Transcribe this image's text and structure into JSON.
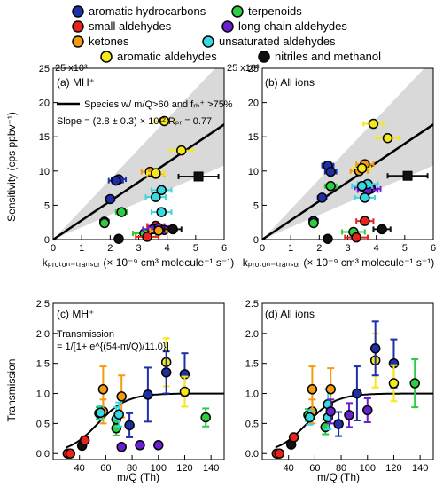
{
  "colors": {
    "aromatic_hydrocarbons": "#1f2fa8",
    "terpenoids": "#2ecc40",
    "small_aldehydes": "#e8231c",
    "long_chain_aldehydes": "#6a1fd1",
    "ketones": "#f39c12",
    "unsaturated_aldehydes": "#38d8e0",
    "aromatic_aldehydes": "#f5e81a",
    "nitriles_methanol": "#111111",
    "shade": "#d9d9d9"
  },
  "legend": [
    {
      "key": "aromatic_hydrocarbons",
      "label": "aromatic hydrocarbons"
    },
    {
      "key": "terpenoids",
      "label": "terpenoids"
    },
    {
      "key": "small_aldehydes",
      "label": "small aldehydes"
    },
    {
      "key": "long_chain_aldehydes",
      "label": "long-chain aldehydes"
    },
    {
      "key": "ketones",
      "label": "ketones"
    },
    {
      "key": "unsaturated_aldehydes",
      "label": "unsaturated aldehydes"
    },
    {
      "key": "aromatic_aldehydes",
      "label": "aromatic aldehydes"
    },
    {
      "key": "nitriles_methanol",
      "label": "nitriles and methanol"
    }
  ],
  "text": {
    "y_scale_a": "25 x10³",
    "y_scale_b": "25 x10³",
    "panel_a": "(a) MH⁺",
    "panel_b": "(b) All ions",
    "panel_c": "(c) MH⁺",
    "panel_d": "(d) All ions",
    "fit_legend": "Species w/ m/Q>60 and fᵣₕ⁺ >75%",
    "slope": "Slope = (2.8 ± 0.3) × 10¹² Rₚᵣ = 0.77",
    "ylabel_top": "Sensitivity (cps ppbv⁻¹)",
    "xlabel_top": "kₚᵣₒₜₒₙ₋ₜᵣₐₙₛₒᵣ (× 10⁻⁹ cm³ molecule⁻¹ s⁻¹)",
    "ylabel_bottom": "Transmission",
    "xlabel_bottom": "m/Q (Th)",
    "transmission_eq_1": "Transmission",
    "transmission_eq_2": "= 1/[1+ e^{(54-m/Q)/11.0}]"
  },
  "chart_data": [
    {
      "type": "scatter",
      "panel": "a",
      "title": "(a) MH+",
      "xlabel": "k_proton-transfer (× 10^-9 cm^3 molecule^-1 s^-1)",
      "ylabel": "Sensitivity (cps ppbv^-1)",
      "xlim": [
        0,
        6
      ],
      "ylim": [
        0,
        25
      ],
      "y_multiplier": "x10^3",
      "xticks": [
        0,
        1,
        2,
        3,
        4,
        5,
        6
      ],
      "yticks": [
        0,
        5,
        10,
        15,
        20,
        25
      ],
      "fit_slope": 2.8,
      "shade_upper_slope": 4.4,
      "shade_lower_slope": 1.8,
      "points": [
        {
          "c": "aromatic_hydrocarbons",
          "x": 2.3,
          "y": 8.8,
          "xerr": 0.25
        },
        {
          "c": "aromatic_hydrocarbons",
          "x": 2.2,
          "y": 8.6,
          "xerr": 0.25
        },
        {
          "c": "aromatic_hydrocarbons",
          "x": 2.0,
          "y": 5.9,
          "xerr": 0.15
        },
        {
          "c": "aromatic_hydrocarbons",
          "x": 1.8,
          "y": 2.6,
          "xerr": 0.15
        },
        {
          "c": "terpenoids",
          "x": 1.8,
          "y": 2.4,
          "xerr": 0.1
        },
        {
          "c": "terpenoids",
          "x": 2.4,
          "y": 4.0,
          "xerr": 0.2
        },
        {
          "c": "terpenoids",
          "x": 3.2,
          "y": 0.9,
          "xerr": 0.4
        },
        {
          "c": "small_aldehydes",
          "x": 3.3,
          "y": 0.4,
          "xerr": 0.4
        },
        {
          "c": "small_aldehydes",
          "x": 3.6,
          "y": 2.0,
          "xerr": 0.3
        },
        {
          "c": "long_chain_aldehydes",
          "x": 3.5,
          "y": 1.5,
          "xerr": 0.35
        },
        {
          "c": "long_chain_aldehydes",
          "x": 3.7,
          "y": 1.7,
          "xerr": 0.35
        },
        {
          "c": "long_chain_aldehydes",
          "x": 3.9,
          "y": 1.4,
          "xerr": 0.35
        },
        {
          "c": "ketones",
          "x": 3.4,
          "y": 9.9,
          "xerr": 0.3
        },
        {
          "c": "ketones",
          "x": 3.6,
          "y": 9.6,
          "xerr": 0.3
        },
        {
          "c": "ketones",
          "x": 3.7,
          "y": 1.3,
          "xerr": 0.3
        },
        {
          "c": "unsaturated_aldehydes",
          "x": 3.8,
          "y": 7.2,
          "xerr": 0.35
        },
        {
          "c": "unsaturated_aldehydes",
          "x": 3.6,
          "y": 6.2,
          "xerr": 0.35
        },
        {
          "c": "unsaturated_aldehydes",
          "x": 3.8,
          "y": 4.0,
          "xerr": 0.35
        },
        {
          "c": "aromatic_aldehydes",
          "x": 3.9,
          "y": 17.3,
          "xerr": 0.35
        },
        {
          "c": "aromatic_aldehydes",
          "x": 4.5,
          "y": 13.0,
          "xerr": 0.4
        },
        {
          "c": "aromatic_aldehydes",
          "x": 3.6,
          "y": 9.7,
          "xerr": 0.3
        },
        {
          "c": "nitriles_methanol",
          "x": 2.3,
          "y": 0.1,
          "xerr": 0
        },
        {
          "c": "nitriles_methanol",
          "x": 4.2,
          "y": 1.5,
          "xerr": 0.3
        },
        {
          "c": "nitriles_methanol",
          "x": 5.1,
          "y": 9.2,
          "xerr": 0.7,
          "marker": "square"
        }
      ]
    },
    {
      "type": "scatter",
      "panel": "b",
      "title": "(b) All ions",
      "xlabel": "k_proton-transfer (× 10^-9 cm^3 molecule^-1 s^-1)",
      "xlim": [
        0,
        6
      ],
      "ylim": [
        0,
        25
      ],
      "y_multiplier": "x10^3",
      "xticks": [
        0,
        1,
        2,
        3,
        4,
        5,
        6
      ],
      "yticks": [
        0,
        5,
        10,
        15,
        20,
        25
      ],
      "fit_slope": 2.8,
      "shade_upper_slope": 4.4,
      "shade_lower_slope": 1.8,
      "points": [
        {
          "c": "aromatic_hydrocarbons",
          "x": 2.3,
          "y": 10.8,
          "xerr": 0.2
        },
        {
          "c": "aromatic_hydrocarbons",
          "x": 2.4,
          "y": 9.9,
          "xerr": 0.2
        },
        {
          "c": "aromatic_hydrocarbons",
          "x": 2.1,
          "y": 6.1,
          "xerr": 0.15
        },
        {
          "c": "aromatic_hydrocarbons",
          "x": 1.8,
          "y": 2.7,
          "xerr": 0.15
        },
        {
          "c": "terpenoids",
          "x": 1.8,
          "y": 2.4,
          "xerr": 0.1
        },
        {
          "c": "terpenoids",
          "x": 2.4,
          "y": 7.8,
          "xerr": 0.2
        },
        {
          "c": "terpenoids",
          "x": 3.2,
          "y": 1.1,
          "xerr": 0.4
        },
        {
          "c": "small_aldehydes",
          "x": 3.3,
          "y": 0.3,
          "xerr": 0.4
        },
        {
          "c": "small_aldehydes",
          "x": 3.6,
          "y": 2.7,
          "xerr": 0.3
        },
        {
          "c": "long_chain_aldehydes",
          "x": 3.6,
          "y": 7.6,
          "xerr": 0.35
        },
        {
          "c": "long_chain_aldehydes",
          "x": 3.8,
          "y": 7.4,
          "xerr": 0.35
        },
        {
          "c": "long_chain_aldehydes",
          "x": 3.7,
          "y": 7.2,
          "xerr": 0.35
        },
        {
          "c": "ketones",
          "x": 3.4,
          "y": 10.0,
          "xerr": 0.3
        },
        {
          "c": "ketones",
          "x": 3.6,
          "y": 11.0,
          "xerr": 0.3
        },
        {
          "c": "unsaturated_aldehydes",
          "x": 3.7,
          "y": 8.1,
          "xerr": 0.35
        },
        {
          "c": "unsaturated_aldehydes",
          "x": 3.6,
          "y": 6.1,
          "xerr": 0.35
        },
        {
          "c": "unsaturated_aldehydes",
          "x": 3.5,
          "y": 7.8,
          "xerr": 0.35
        },
        {
          "c": "aromatic_aldehydes",
          "x": 3.9,
          "y": 16.9,
          "xerr": 0.35
        },
        {
          "c": "aromatic_aldehydes",
          "x": 4.4,
          "y": 14.8,
          "xerr": 0.4
        },
        {
          "c": "aromatic_aldehydes",
          "x": 3.5,
          "y": 10.4,
          "xerr": 0.3
        },
        {
          "c": "nitriles_methanol",
          "x": 2.3,
          "y": 0.1,
          "xerr": 0
        },
        {
          "c": "nitriles_methanol",
          "x": 4.2,
          "y": 1.5,
          "xerr": 0.3
        },
        {
          "c": "nitriles_methanol",
          "x": 5.1,
          "y": 9.3,
          "xerr": 0.7,
          "marker": "square"
        }
      ]
    },
    {
      "type": "scatter",
      "panel": "c",
      "title": "(c) MH+",
      "xlabel": "m/Q (Th)",
      "ylabel": "Transmission",
      "xlim": [
        20,
        150
      ],
      "ylim": [
        -0.1,
        2.5
      ],
      "xticks": [
        40,
        60,
        80,
        100,
        120,
        140
      ],
      "yticks": [
        0.0,
        0.5,
        1.0,
        1.5,
        2.0,
        2.5
      ],
      "fit": {
        "x0": 54,
        "k": 11.0
      },
      "points": [
        {
          "c": "small_aldehydes",
          "x": 31,
          "y": 0.0,
          "err": 0.02
        },
        {
          "c": "small_aldehydes",
          "x": 33,
          "y": 0.0,
          "err": 0.02
        },
        {
          "c": "nitriles_methanol",
          "x": 42,
          "y": 0.13,
          "err": 0.04
        },
        {
          "c": "small_aldehydes",
          "x": 44,
          "y": 0.22,
          "err": 0.05
        },
        {
          "c": "terpenoids",
          "x": 55,
          "y": 0.67,
          "err": 0.1
        },
        {
          "c": "ketones",
          "x": 58,
          "y": 0.7,
          "err": 0.2
        },
        {
          "c": "ketones",
          "x": 58,
          "y": 1.07,
          "err": 0.38
        },
        {
          "c": "unsaturated_aldehydes",
          "x": 56,
          "y": 0.68,
          "err": 0.12
        },
        {
          "c": "unsaturated_aldehydes",
          "x": 68,
          "y": 0.57,
          "err": 0.2
        },
        {
          "c": "terpenoids",
          "x": 68,
          "y": 0.42,
          "err": 0.12
        },
        {
          "c": "ketones",
          "x": 72,
          "y": 0.95,
          "err": 0.35
        },
        {
          "c": "unsaturated_aldehydes",
          "x": 70,
          "y": 0.65,
          "err": 0.2
        },
        {
          "c": "long_chain_aldehydes",
          "x": 72,
          "y": 0.11,
          "err": 0
        },
        {
          "c": "aromatic_hydrocarbons",
          "x": 78,
          "y": 0.47,
          "err": 0.2
        },
        {
          "c": "long_chain_aldehydes",
          "x": 86,
          "y": 0.14,
          "err": 0
        },
        {
          "c": "aromatic_hydrocarbons",
          "x": 92,
          "y": 0.98,
          "err": 0.45
        },
        {
          "c": "long_chain_aldehydes",
          "x": 100,
          "y": 0.14,
          "err": 0
        },
        {
          "c": "aromatic_aldehydes",
          "x": 106,
          "y": 1.52,
          "err": 0.4
        },
        {
          "c": "aromatic_hydrocarbons",
          "x": 106,
          "y": 1.35,
          "err": 0.35
        },
        {
          "c": "aromatic_hydrocarbons",
          "x": 120,
          "y": 1.32,
          "err": 0.35
        },
        {
          "c": "aromatic_aldehydes",
          "x": 120,
          "y": 1.03,
          "err": 0.25
        },
        {
          "c": "terpenoids",
          "x": 136,
          "y": 0.6,
          "err": 0.15
        }
      ]
    },
    {
      "type": "scatter",
      "panel": "d",
      "title": "(d) All ions",
      "xlabel": "m/Q (Th)",
      "xlim": [
        20,
        150
      ],
      "ylim": [
        -0.1,
        2.5
      ],
      "xticks": [
        40,
        60,
        80,
        100,
        120,
        140
      ],
      "yticks": [
        0.0,
        0.5,
        1.0,
        1.5,
        2.0,
        2.5
      ],
      "fit": {
        "x0": 54,
        "k": 11.0
      },
      "points": [
        {
          "c": "small_aldehydes",
          "x": 31,
          "y": 0.0,
          "err": 0.02
        },
        {
          "c": "small_aldehydes",
          "x": 33,
          "y": 0.0,
          "err": 0.02
        },
        {
          "c": "nitriles_methanol",
          "x": 42,
          "y": 0.15,
          "err": 0.04
        },
        {
          "c": "small_aldehydes",
          "x": 44,
          "y": 0.27,
          "err": 0.05
        },
        {
          "c": "terpenoids",
          "x": 55,
          "y": 0.64,
          "err": 0.1
        },
        {
          "c": "ketones",
          "x": 58,
          "y": 0.7,
          "err": 0.2
        },
        {
          "c": "ketones",
          "x": 58,
          "y": 1.07,
          "err": 0.38
        },
        {
          "c": "unsaturated_aldehydes",
          "x": 56,
          "y": 0.6,
          "err": 0.12
        },
        {
          "c": "unsaturated_aldehydes",
          "x": 70,
          "y": 0.82,
          "err": 0.25
        },
        {
          "c": "terpenoids",
          "x": 68,
          "y": 0.44,
          "err": 0.12
        },
        {
          "c": "ketones",
          "x": 72,
          "y": 1.07,
          "err": 0.35
        },
        {
          "c": "unsaturated_aldehydes",
          "x": 70,
          "y": 0.6,
          "err": 0.2
        },
        {
          "c": "long_chain_aldehydes",
          "x": 72,
          "y": 0.7,
          "err": 0.2
        },
        {
          "c": "aromatic_hydrocarbons",
          "x": 78,
          "y": 0.49,
          "err": 0.2
        },
        {
          "c": "long_chain_aldehydes",
          "x": 86,
          "y": 0.64,
          "err": 0.2
        },
        {
          "c": "aromatic_hydrocarbons",
          "x": 92,
          "y": 1.0,
          "err": 0.45
        },
        {
          "c": "long_chain_aldehydes",
          "x": 100,
          "y": 0.72,
          "err": 0.2
        },
        {
          "c": "aromatic_aldehydes",
          "x": 106,
          "y": 1.55,
          "err": 0.45
        },
        {
          "c": "aromatic_hydrocarbons",
          "x": 106,
          "y": 1.75,
          "err": 0.45
        },
        {
          "c": "aromatic_hydrocarbons",
          "x": 120,
          "y": 1.5,
          "err": 0.4
        },
        {
          "c": "aromatic_aldehydes",
          "x": 120,
          "y": 1.17,
          "err": 0.3
        },
        {
          "c": "terpenoids",
          "x": 136,
          "y": 1.17,
          "err": 0.4
        }
      ]
    }
  ]
}
